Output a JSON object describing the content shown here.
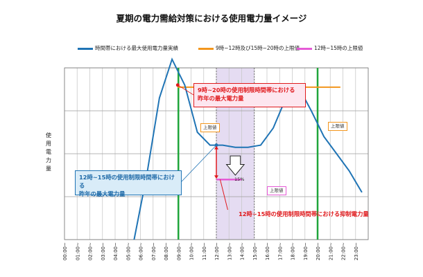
{
  "chart_data": {
    "type": "line",
    "title": "夏期の電力需給対策における使用電力量イメージ",
    "ylabel": "使用電力量",
    "categories": [
      "00:00~",
      "01:00~",
      "02:00~",
      "03:00~",
      "04:00~",
      "05:00~",
      "06:00~",
      "07:00~",
      "08:00~",
      "09:00~",
      "10:00~",
      "11:00~",
      "12:00~",
      "13:00~",
      "14:00~",
      "15:00~",
      "16:00~",
      "17:00~",
      "18:00~",
      "19:00~",
      "20:00~",
      "21:00~",
      "22:00~",
      "23:00~"
    ],
    "ylim": [
      0,
      4
    ],
    "grid": true,
    "legend_position": "top",
    "series": [
      {
        "name": "時間帯における最大使用電力量実績",
        "color": "#1f74b5",
        "values": [
          null,
          null,
          null,
          null,
          null,
          0,
          1.5,
          3.3,
          4.2,
          3.6,
          2.5,
          2.2,
          2.2,
          2.15,
          2.15,
          2.2,
          2.6,
          3.3,
          3.55,
          3.0,
          2.4,
          2.0,
          1.6,
          1.1
        ]
      },
      {
        "name": "9時~12時及び15時~20時の上限値",
        "color": "#f3961d",
        "segments": [
          {
            "x": [
              8.95,
              10.8
            ],
            "y": 3.55
          },
          {
            "x": 15,
            "x_end": 20,
            "y": 3.55
          },
          {
            "x": 20,
            "x_end": 21.8,
            "y": 3.55
          }
        ]
      },
      {
        "name": "12時~15時の上限値",
        "color": "#e55ad6",
        "segments": [
          {
            "x": [
              12,
              14
            ],
            "y": 1.4
          }
        ]
      }
    ],
    "reference_lines": {
      "color": "#1fa53a",
      "x": [
        9,
        20
      ]
    },
    "shaded_band": {
      "x": [
        12,
        15
      ],
      "color": "#e5dcf2"
    },
    "annotations": {
      "red_callout": "9時~20時の使用制限時間帯における\n昨年の最大電力量",
      "blue_callout": "12時~15時の使用制限時間帯における\n昨年の最大電力量",
      "reduction_label": "12時~15時の使用制限時間帯における抑制電力量",
      "percent": "15%",
      "limit_label": "上限値"
    }
  }
}
